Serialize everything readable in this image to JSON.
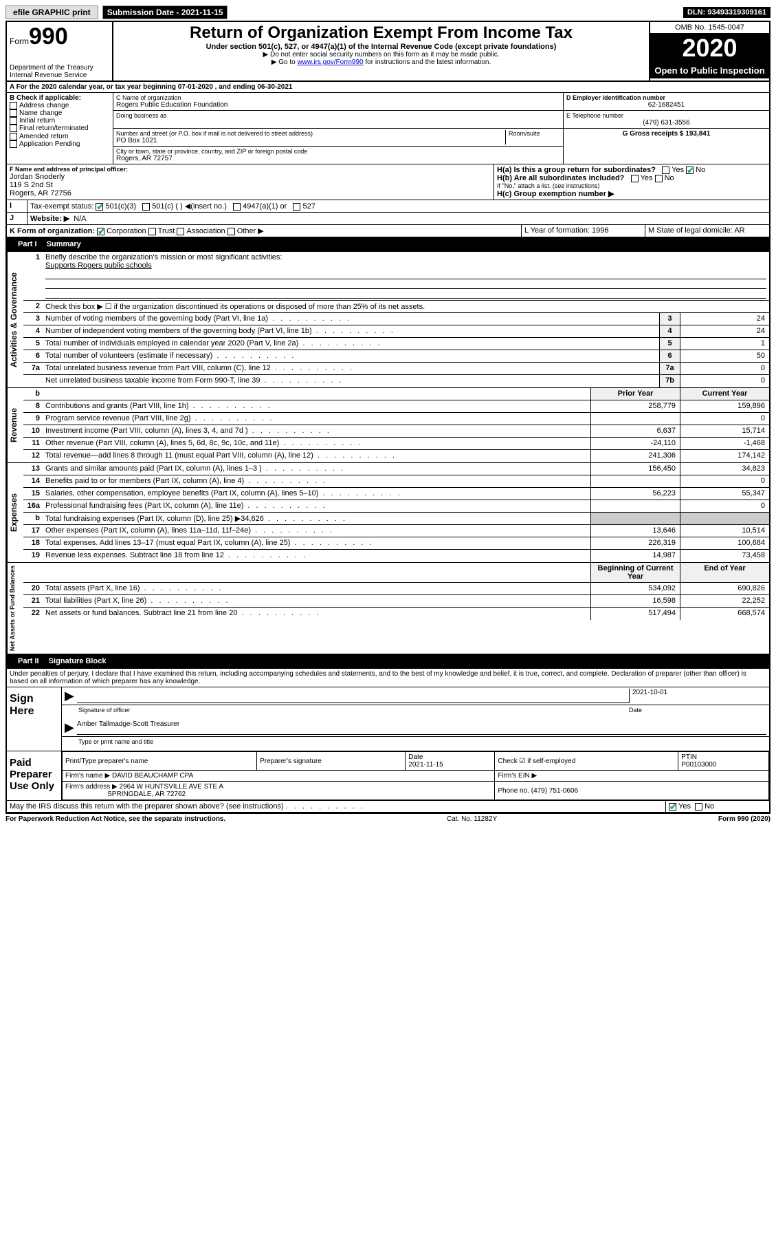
{
  "topbar": {
    "efile": "efile GRAPHIC print",
    "submission_label": "Submission Date - 2021-11-15",
    "dln": "DLN: 93493319309161"
  },
  "header": {
    "form_label": "Form",
    "form_num": "990",
    "dept": "Department of the Treasury",
    "irs": "Internal Revenue Service",
    "title": "Return of Organization Exempt From Income Tax",
    "sub1": "Under section 501(c), 527, or 4947(a)(1) of the Internal Revenue Code (except private foundations)",
    "sub2": "▶ Do not enter social security numbers on this form as it may be made public.",
    "sub3_pre": "▶ Go to ",
    "sub3_link": "www.irs.gov/Form990",
    "sub3_post": " for instructions and the latest information.",
    "omb": "OMB No. 1545-0047",
    "year": "2020",
    "open": "Open to Public Inspection"
  },
  "sectionA": {
    "a_line": "A For the 2020 calendar year, or tax year beginning 07-01-2020    , and ending 06-30-2021",
    "b_label": "B Check if applicable:",
    "b_opts": [
      "Address change",
      "Name change",
      "Initial return",
      "Final return/terminated",
      "Amended return",
      "Application Pending"
    ],
    "c_name_lbl": "C Name of organization",
    "c_name": "Rogers Public Education Foundation",
    "dba_lbl": "Doing business as",
    "addr_lbl": "Number and street (or P.O. box if mail is not delivered to street address)",
    "room_lbl": "Room/suite",
    "addr": "PO Box 1021",
    "city_lbl": "City or town, state or province, country, and ZIP or foreign postal code",
    "city": "Rogers, AR  72757",
    "d_lbl": "D Employer identification number",
    "d_val": "62-1682451",
    "e_lbl": "E Telephone number",
    "e_val": "(479) 631-3556",
    "g_lbl": "G Gross receipts $ 193,841",
    "f_lbl": "F  Name and address of principal officer:",
    "f_name": "Jordan Snoderly",
    "f_addr1": "119 S 2nd St",
    "f_addr2": "Rogers, AR  72756",
    "ha_lbl": "H(a)  Is this a group return for subordinates?",
    "hb_lbl": "H(b)  Are all subordinates included?",
    "hb_note": "If \"No,\" attach a list. (see instructions)",
    "hc_lbl": "H(c)  Group exemption number ▶",
    "yes": "Yes",
    "no": "No",
    "i_lbl": "Tax-exempt status:",
    "i_501c3": "501(c)(3)",
    "i_501c": "501(c) (   ) ◀(insert no.)",
    "i_4947": "4947(a)(1) or",
    "i_527": "527",
    "j_lbl": "Website: ▶",
    "j_val": "N/A",
    "k_lbl": "K Form of organization:",
    "k_corp": "Corporation",
    "k_trust": "Trust",
    "k_assoc": "Association",
    "k_other": "Other ▶",
    "l_lbl": "L Year of formation: 1996",
    "m_lbl": "M State of legal domicile: AR"
  },
  "part1": {
    "hdr": "Part I",
    "title": "Summary",
    "vlabel_ag": "Activities & Governance",
    "vlabel_rev": "Revenue",
    "vlabel_exp": "Expenses",
    "vlabel_na": "Net Assets or Fund Balances",
    "l1": "Briefly describe the organization's mission or most significant activities:",
    "l1_val": "Supports Rogers public schools",
    "l2": "Check this box ▶ ☐  if the organization discontinued its operations or disposed of more than 25% of its net assets.",
    "lines_ag": [
      {
        "n": "3",
        "t": "Number of voting members of the governing body (Part VI, line 1a)",
        "b": "3",
        "v": "24"
      },
      {
        "n": "4",
        "t": "Number of independent voting members of the governing body (Part VI, line 1b)",
        "b": "4",
        "v": "24"
      },
      {
        "n": "5",
        "t": "Total number of individuals employed in calendar year 2020 (Part V, line 2a)",
        "b": "5",
        "v": "1"
      },
      {
        "n": "6",
        "t": "Total number of volunteers (estimate if necessary)",
        "b": "6",
        "v": "50"
      },
      {
        "n": "7a",
        "t": "Total unrelated business revenue from Part VIII, column (C), line 12",
        "b": "7a",
        "v": "0"
      },
      {
        "n": "",
        "t": "Net unrelated business taxable income from Form 990-T, line 39",
        "b": "7b",
        "v": "0"
      }
    ],
    "col_prior": "Prior Year",
    "col_curr": "Current Year",
    "col_beg": "Beginning of Current Year",
    "col_end": "End of Year",
    "lines_rev": [
      {
        "n": "8",
        "t": "Contributions and grants (Part VIII, line 1h)",
        "p": "258,779",
        "c": "159,896"
      },
      {
        "n": "9",
        "t": "Program service revenue (Part VIII, line 2g)",
        "p": "",
        "c": "0"
      },
      {
        "n": "10",
        "t": "Investment income (Part VIII, column (A), lines 3, 4, and 7d )",
        "p": "6,637",
        "c": "15,714"
      },
      {
        "n": "11",
        "t": "Other revenue (Part VIII, column (A), lines 5, 6d, 8c, 9c, 10c, and 11e)",
        "p": "-24,110",
        "c": "-1,468"
      },
      {
        "n": "12",
        "t": "Total revenue—add lines 8 through 11 (must equal Part VIII, column (A), line 12)",
        "p": "241,306",
        "c": "174,142"
      }
    ],
    "lines_exp": [
      {
        "n": "13",
        "t": "Grants and similar amounts paid (Part IX, column (A), lines 1–3 )",
        "p": "156,450",
        "c": "34,823"
      },
      {
        "n": "14",
        "t": "Benefits paid to or for members (Part IX, column (A), line 4)",
        "p": "",
        "c": "0"
      },
      {
        "n": "15",
        "t": "Salaries, other compensation, employee benefits (Part IX, column (A), lines 5–10)",
        "p": "56,223",
        "c": "55,347"
      },
      {
        "n": "16a",
        "t": "Professional fundraising fees (Part IX, column (A), line 11e)",
        "p": "",
        "c": "0"
      },
      {
        "n": "b",
        "t": "Total fundraising expenses (Part IX, column (D), line 25) ▶34,626",
        "p": "",
        "c": "",
        "shade": true
      },
      {
        "n": "17",
        "t": "Other expenses (Part IX, column (A), lines 11a–11d, 11f–24e)",
        "p": "13,646",
        "c": "10,514"
      },
      {
        "n": "18",
        "t": "Total expenses. Add lines 13–17 (must equal Part IX, column (A), line 25)",
        "p": "226,319",
        "c": "100,684"
      },
      {
        "n": "19",
        "t": "Revenue less expenses. Subtract line 18 from line 12",
        "p": "14,987",
        "c": "73,458"
      }
    ],
    "lines_na": [
      {
        "n": "20",
        "t": "Total assets (Part X, line 16)",
        "p": "534,092",
        "c": "690,826"
      },
      {
        "n": "21",
        "t": "Total liabilities (Part X, line 26)",
        "p": "16,598",
        "c": "22,252"
      },
      {
        "n": "22",
        "t": "Net assets or fund balances. Subtract line 21 from line 20",
        "p": "517,494",
        "c": "668,574"
      }
    ]
  },
  "part2": {
    "hdr": "Part II",
    "title": "Signature Block",
    "decl": "Under penalties of perjury, I declare that I have examined this return, including accompanying schedules and statements, and to the best of my knowledge and belief, it is true, correct, and complete. Declaration of preparer (other than officer) is based on all information of which preparer has any knowledge.",
    "sign_here": "Sign Here",
    "sig_officer": "Signature of officer",
    "date_lbl": "Date",
    "date_val": "2021-10-01",
    "name_title": "Amber Tallmadge-Scott Treasurer",
    "type_lbl": "Type or print name and title",
    "paid_prep": "Paid Preparer Use Only",
    "pp_name_lbl": "Print/Type preparer's name",
    "pp_sig_lbl": "Preparer's signature",
    "pp_date_lbl": "Date",
    "pp_date": "2021-11-15",
    "pp_check_lbl": "Check ☑ if self-employed",
    "pp_ptin_lbl": "PTIN",
    "pp_ptin": "P00103000",
    "firm_name_lbl": "Firm's name    ▶",
    "firm_name": "DAVID BEAUCHAMP CPA",
    "firm_ein_lbl": "Firm's EIN ▶",
    "firm_addr_lbl": "Firm's address ▶",
    "firm_addr1": "2964 W HUNTSVILLE AVE STE A",
    "firm_addr2": "SPRINGDALE, AR  72762",
    "phone_lbl": "Phone no. (479) 751-0606",
    "discuss": "May the IRS discuss this return with the preparer shown above? (see instructions)"
  },
  "footer": {
    "pra": "For Paperwork Reduction Act Notice, see the separate instructions.",
    "cat": "Cat. No. 11282Y",
    "form": "Form 990 (2020)"
  }
}
